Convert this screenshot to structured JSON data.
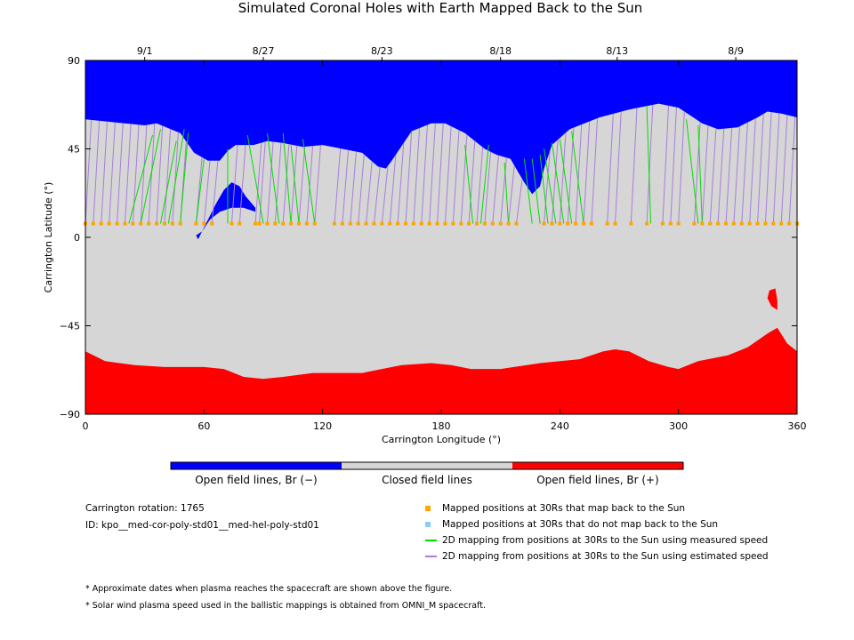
{
  "title": "Simulated Coronal Holes with Earth Mapped Back to the Sun",
  "colors": {
    "open_negative": "#0000ff",
    "closed": "#d6d6d6",
    "open_positive": "#ff0000",
    "mapped_point": "#ffa500",
    "unmapped_point": "#87cefa",
    "measured_line": "#00dd00",
    "estimated_line": "#a87ddb"
  },
  "chart_data": {
    "type": "heatmap",
    "xlabel": "Carrington Longitude (°)",
    "ylabel": "Carrington Latitude (°)",
    "xlim": [
      0,
      360
    ],
    "ylim": [
      -90,
      90
    ],
    "x_ticks": [
      "0",
      "60",
      "120",
      "180",
      "240",
      "300",
      "360"
    ],
    "y_ticks": [
      "90",
      "45",
      "0",
      "-45",
      "-90"
    ],
    "top_date_ticks": [
      {
        "label": "9/1",
        "lon": 30
      },
      {
        "label": "8/27",
        "lon": 90
      },
      {
        "label": "8/23",
        "lon": 150
      },
      {
        "label": "8/18",
        "lon": 210
      },
      {
        "label": "8/13",
        "lon": 269
      },
      {
        "label": "8/9",
        "lon": 329
      }
    ],
    "north_hole_boundary": [
      [
        0,
        60
      ],
      [
        20,
        58
      ],
      [
        30,
        57
      ],
      [
        36,
        58
      ],
      [
        48,
        53
      ],
      [
        55,
        43
      ],
      [
        62,
        39
      ],
      [
        68,
        39
      ],
      [
        72,
        44
      ],
      [
        76,
        47
      ],
      [
        85,
        47
      ],
      [
        92,
        49
      ],
      [
        100,
        48
      ],
      [
        110,
        46
      ],
      [
        120,
        47
      ],
      [
        130,
        45
      ],
      [
        140,
        43
      ],
      [
        148,
        36
      ],
      [
        152,
        35
      ],
      [
        155,
        39
      ],
      [
        165,
        54
      ],
      [
        175,
        58
      ],
      [
        182,
        58
      ],
      [
        192,
        53
      ],
      [
        202,
        45
      ],
      [
        208,
        42
      ],
      [
        215,
        40
      ],
      [
        219,
        33
      ],
      [
        222,
        28
      ],
      [
        226,
        22
      ],
      [
        230,
        26
      ],
      [
        232,
        35
      ],
      [
        236,
        47
      ],
      [
        245,
        55
      ],
      [
        260,
        61
      ],
      [
        275,
        65
      ],
      [
        290,
        68
      ],
      [
        300,
        66
      ],
      [
        306,
        62
      ],
      [
        312,
        58
      ],
      [
        320,
        55
      ],
      [
        330,
        56
      ],
      [
        340,
        61
      ],
      [
        345,
        64
      ],
      [
        352,
        63
      ],
      [
        360,
        61
      ]
    ],
    "south_hole_boundary": [
      [
        0,
        -58
      ],
      [
        10,
        -63
      ],
      [
        25,
        -65
      ],
      [
        40,
        -66
      ],
      [
        60,
        -66
      ],
      [
        70,
        -67
      ],
      [
        80,
        -71
      ],
      [
        90,
        -72
      ],
      [
        100,
        -71
      ],
      [
        115,
        -69
      ],
      [
        130,
        -69
      ],
      [
        140,
        -69
      ],
      [
        150,
        -67
      ],
      [
        160,
        -65
      ],
      [
        175,
        -64
      ],
      [
        185,
        -65
      ],
      [
        195,
        -67
      ],
      [
        210,
        -67
      ],
      [
        230,
        -64
      ],
      [
        250,
        -62
      ],
      [
        262,
        -58
      ],
      [
        268,
        -57
      ],
      [
        275,
        -58
      ],
      [
        285,
        -63
      ],
      [
        295,
        -66
      ],
      [
        300,
        -67
      ],
      [
        310,
        -63
      ],
      [
        325,
        -60
      ],
      [
        335,
        -56
      ],
      [
        345,
        -49
      ],
      [
        350,
        -46
      ],
      [
        355,
        -54
      ],
      [
        360,
        -58
      ]
    ],
    "isolated_negative_hole": [
      [
        57,
        -1
      ],
      [
        60,
        5
      ],
      [
        63,
        11
      ],
      [
        66,
        17
      ],
      [
        70,
        24
      ],
      [
        74,
        28
      ],
      [
        78,
        26
      ],
      [
        81,
        21
      ],
      [
        86,
        15
      ],
      [
        86,
        13
      ],
      [
        80,
        15
      ],
      [
        74,
        15
      ],
      [
        68,
        13
      ],
      [
        63,
        9
      ],
      [
        59,
        3
      ],
      [
        56,
        1
      ]
    ],
    "isolated_positive_spot": [
      [
        346,
        -27
      ],
      [
        349,
        -26
      ],
      [
        350,
        -32
      ],
      [
        350,
        -37
      ],
      [
        347,
        -35
      ],
      [
        345,
        -31
      ]
    ],
    "mapped_positions_lat": 7,
    "mapped_lons": [
      0,
      4,
      8,
      12,
      16,
      20,
      24,
      28,
      32,
      36,
      40,
      44,
      48,
      56,
      60,
      64,
      74,
      78,
      86,
      88,
      92,
      96,
      100,
      104,
      108,
      112,
      116,
      126,
      130,
      134,
      138,
      142,
      146,
      150,
      154,
      158,
      162,
      166,
      170,
      174,
      178,
      182,
      186,
      190,
      194,
      198,
      202,
      206,
      210,
      214,
      218,
      232,
      236,
      240,
      244,
      248,
      252,
      256,
      264,
      268,
      276,
      284,
      292,
      296,
      300,
      308,
      312,
      316,
      320,
      324,
      328,
      332,
      336,
      340,
      344,
      348,
      352,
      356,
      360
    ],
    "measured_lines": [
      [
        [
          22,
          7
        ],
        [
          34,
          52
        ]
      ],
      [
        [
          28,
          7
        ],
        [
          38,
          55
        ]
      ],
      [
        [
          38,
          7
        ],
        [
          46,
          49
        ]
      ],
      [
        [
          42,
          7
        ],
        [
          50,
          55
        ]
      ],
      [
        [
          48,
          7
        ],
        [
          52,
          53
        ]
      ],
      [
        [
          56,
          7
        ],
        [
          60,
          40
        ]
      ],
      [
        [
          72,
          7
        ],
        [
          72,
          45
        ]
      ],
      [
        [
          90,
          7
        ],
        [
          82,
          52
        ]
      ],
      [
        [
          98,
          7
        ],
        [
          92,
          53
        ]
      ],
      [
        [
          104,
          7
        ],
        [
          100,
          53
        ]
      ],
      [
        [
          108,
          7
        ],
        [
          104,
          47
        ]
      ],
      [
        [
          116,
          7
        ],
        [
          110,
          50
        ]
      ],
      [
        [
          196,
          7
        ],
        [
          192,
          47
        ]
      ],
      [
        [
          200,
          7
        ],
        [
          204,
          47
        ]
      ],
      [
        [
          214,
          7
        ],
        [
          212,
          38
        ]
      ],
      [
        [
          226,
          7
        ],
        [
          222,
          40
        ]
      ],
      [
        [
          230,
          7
        ],
        [
          226,
          40
        ]
      ],
      [
        [
          234,
          7
        ],
        [
          230,
          42
        ]
      ],
      [
        [
          238,
          7
        ],
        [
          232,
          45
        ]
      ],
      [
        [
          242,
          7
        ],
        [
          236,
          48
        ]
      ],
      [
        [
          246,
          7
        ],
        [
          240,
          50
        ]
      ],
      [
        [
          252,
          7
        ],
        [
          246,
          54
        ]
      ],
      [
        [
          286,
          7
        ],
        [
          284,
          67
        ]
      ],
      [
        [
          310,
          7
        ],
        [
          304,
          60
        ]
      ],
      [
        [
          312,
          7
        ],
        [
          310,
          57
        ]
      ]
    ],
    "legend": [
      {
        "label": "Mapped positions at 30Rs that map back to the Sun",
        "kind": "square",
        "color": "#ffa500"
      },
      {
        "label": "Mapped positions at 30Rs that do not map back to the Sun",
        "kind": "square",
        "color": "#87cefa"
      },
      {
        "label": "2D mapping from positions at 30Rs to the Sun using measured speed",
        "kind": "line",
        "color": "#00dd00"
      },
      {
        "label": "2D mapping from positions at 30Rs to the Sun using estimated speed",
        "kind": "line",
        "color": "#a87ddb"
      }
    ]
  },
  "colorbar": {
    "labels": [
      "Open field lines, Br (−)",
      "Closed field lines",
      "Open field lines, Br (+)"
    ]
  },
  "info": {
    "rotation": "Carrington rotation: 1765",
    "id": "ID: kpo__med-cor-poly-std01__med-hel-poly-std01"
  },
  "notes": [
    "* Approximate dates when plasma reaches the spacecraft are shown above the figure.",
    "* Solar wind plasma speed used in the ballistic mappings is obtained from OMNI_M spacecraft."
  ]
}
